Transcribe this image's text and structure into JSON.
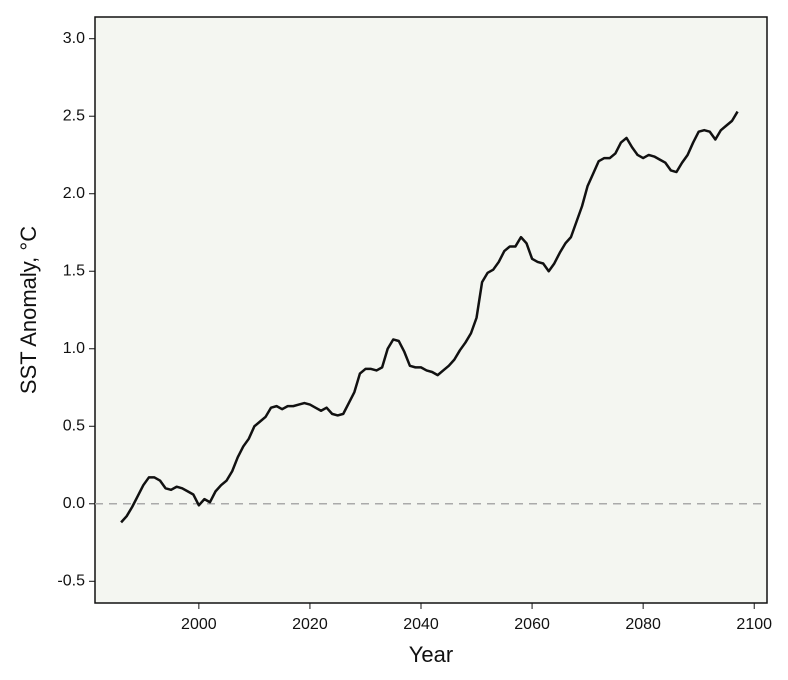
{
  "chart_data": {
    "type": "line",
    "x_label": "Year",
    "y_label": "SST Anomaly, °C",
    "x": [
      1986,
      1987,
      1988,
      1989,
      1990,
      1991,
      1992,
      1993,
      1994,
      1995,
      1996,
      1997,
      1998,
      1999,
      2000,
      2001,
      2002,
      2003,
      2004,
      2005,
      2006,
      2007,
      2008,
      2009,
      2010,
      2011,
      2012,
      2013,
      2014,
      2015,
      2016,
      2017,
      2018,
      2019,
      2020,
      2021,
      2022,
      2023,
      2024,
      2025,
      2026,
      2027,
      2028,
      2029,
      2030,
      2031,
      2032,
      2033,
      2034,
      2035,
      2036,
      2037,
      2038,
      2039,
      2040,
      2041,
      2042,
      2043,
      2044,
      2045,
      2046,
      2047,
      2048,
      2049,
      2050,
      2051,
      2052,
      2053,
      2054,
      2055,
      2056,
      2057,
      2058,
      2059,
      2060,
      2061,
      2062,
      2063,
      2064,
      2065,
      2066,
      2067,
      2068,
      2069,
      2070,
      2071,
      2072,
      2073,
      2074,
      2075,
      2076,
      2077,
      2078,
      2079,
      2080,
      2081,
      2082,
      2083,
      2084,
      2085,
      2086,
      2087,
      2088,
      2089,
      2090,
      2091,
      2092,
      2093,
      2094,
      2095,
      2096,
      2097
    ],
    "values": [
      -0.12,
      -0.08,
      -0.02,
      0.05,
      0.12,
      0.17,
      0.17,
      0.15,
      0.1,
      0.09,
      0.11,
      0.1,
      0.08,
      0.06,
      -0.01,
      0.03,
      0.01,
      0.08,
      0.12,
      0.15,
      0.21,
      0.3,
      0.37,
      0.42,
      0.5,
      0.53,
      0.56,
      0.62,
      0.63,
      0.61,
      0.63,
      0.63,
      0.64,
      0.65,
      0.64,
      0.62,
      0.6,
      0.62,
      0.58,
      0.57,
      0.58,
      0.65,
      0.72,
      0.84,
      0.87,
      0.87,
      0.86,
      0.88,
      1.0,
      1.06,
      1.05,
      0.98,
      0.89,
      0.88,
      0.88,
      0.86,
      0.85,
      0.83,
      0.86,
      0.89,
      0.93,
      0.99,
      1.04,
      1.1,
      1.2,
      1.43,
      1.49,
      1.51,
      1.56,
      1.63,
      1.66,
      1.66,
      1.72,
      1.68,
      1.58,
      1.56,
      1.55,
      1.5,
      1.55,
      1.62,
      1.68,
      1.72,
      1.82,
      1.92,
      2.05,
      2.13,
      2.21,
      2.23,
      2.23,
      2.26,
      2.33,
      2.36,
      2.3,
      2.25,
      2.23,
      2.25,
      2.24,
      2.22,
      2.2,
      2.15,
      2.14,
      2.2,
      2.25,
      2.33,
      2.4,
      2.41,
      2.4,
      2.35,
      2.41,
      2.44,
      2.47,
      2.53
    ],
    "color": "#111111",
    "reference_line": 0,
    "xlim": [
      1981.3,
      2102.3
    ],
    "xticks": [
      2000,
      2020,
      2040,
      2060,
      2080,
      2100
    ],
    "ylim": [
      -0.64,
      3.14
    ],
    "yticks": [
      -0.5,
      {
        "value": 0,
        "label": "0.0"
      },
      0.5,
      {
        "value": 1,
        "label": "1.0"
      },
      1.5,
      {
        "value": 2,
        "label": "2.0"
      },
      2.5,
      {
        "value": 3,
        "label": "3.0"
      }
    ],
    "grid": false
  }
}
